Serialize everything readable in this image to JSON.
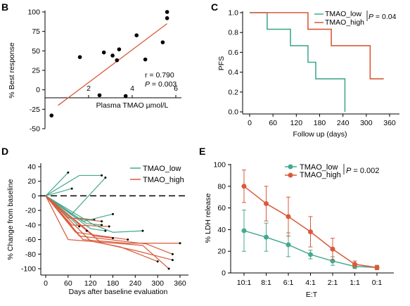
{
  "colors": {
    "teal": "#45a98f",
    "red": "#d9593a",
    "black": "#000000"
  },
  "chart_data": [
    {
      "panel": "B",
      "type": "scatter",
      "xlabel": "Plasma TMAO µmol/L",
      "ylabel": "% Best response",
      "x_ticks": [
        2,
        4,
        6
      ],
      "y_ticks": [
        100,
        75,
        50,
        25,
        0,
        -25,
        -50
      ],
      "xlim": [
        0,
        6.2
      ],
      "ylim": [
        -50,
        105
      ],
      "annotation_r": "r = 0.790",
      "annotation_p_label": "P",
      "annotation_p_value": " = 0.003",
      "points": [
        {
          "x": 0.3,
          "y": -33
        },
        {
          "x": 1.6,
          "y": 42
        },
        {
          "x": 2.7,
          "y": 48
        },
        {
          "x": 3.4,
          "y": 52
        },
        {
          "x": 3.1,
          "y": 44
        },
        {
          "x": 3.3,
          "y": 38
        },
        {
          "x": 2.5,
          "y": -7
        },
        {
          "x": 4.2,
          "y": 70
        },
        {
          "x": 4.6,
          "y": 39
        },
        {
          "x": 5.4,
          "y": 61
        },
        {
          "x": 5.6,
          "y": 92
        },
        {
          "x": 5.6,
          "y": 100
        },
        {
          "x": 3.7,
          "y": -8
        }
      ],
      "fit": [
        {
          "x": 0.6,
          "y": -20
        },
        {
          "x": 5.6,
          "y": 85
        }
      ]
    },
    {
      "panel": "C",
      "type": "line",
      "xlabel": "Follow up (days)",
      "ylabel": "PFS",
      "x_ticks": [
        0,
        60,
        120,
        180,
        240,
        300,
        360
      ],
      "y_ticks": [
        0.0,
        0.2,
        0.4,
        0.6,
        0.8,
        1.0
      ],
      "xlim": [
        -10,
        370
      ],
      "ylim": [
        0,
        1.02
      ],
      "p_text": "P = 0.04",
      "series": [
        {
          "name": "TMAO_low",
          "color": "teal",
          "steps": [
            [
              0,
              1.0
            ],
            [
              45,
              1.0
            ],
            [
              45,
              0.833
            ],
            [
              105,
              0.833
            ],
            [
              105,
              0.667
            ],
            [
              150,
              0.667
            ],
            [
              150,
              0.5
            ],
            [
              170,
              0.5
            ],
            [
              170,
              0.333
            ],
            [
              245,
              0.333
            ],
            [
              245,
              0.0
            ]
          ]
        },
        {
          "name": "TMAO_high",
          "color": "red",
          "steps": [
            [
              0,
              1.0
            ],
            [
              150,
              1.0
            ],
            [
              150,
              0.833
            ],
            [
              210,
              0.833
            ],
            [
              210,
              0.667
            ],
            [
              310,
              0.667
            ],
            [
              310,
              0.333
            ],
            [
              345,
              0.333
            ]
          ]
        }
      ]
    },
    {
      "panel": "D",
      "type": "line",
      "xlabel": "Days after baseline evaluation",
      "ylabel": "% Change from baseline",
      "x_ticks": [
        0,
        60,
        120,
        180,
        240,
        300,
        360
      ],
      "y_ticks": [
        40,
        20,
        0,
        -20,
        -40,
        -60,
        -80,
        -100
      ],
      "xlim": [
        -20,
        375
      ],
      "ylim": [
        -108,
        45
      ],
      "series": [
        {
          "name": "TMAO_low",
          "color": "teal",
          "lines": [
            [
              [
                0,
                0
              ],
              [
                60,
                32
              ]
            ],
            [
              [
                0,
                0
              ],
              [
                90,
                28
              ],
              [
                150,
                28
              ]
            ],
            [
              [
                0,
                0
              ],
              [
                70,
                10
              ]
            ],
            [
              [
                0,
                0
              ],
              [
                70,
                -25
              ],
              [
                160,
                25
              ]
            ],
            [
              [
                0,
                0
              ],
              [
                80,
                -30
              ],
              [
                130,
                -33
              ]
            ],
            [
              [
                0,
                0
              ],
              [
                100,
                -35
              ],
              [
                180,
                -25
              ]
            ],
            [
              [
                0,
                0
              ],
              [
                110,
                -38
              ],
              [
                150,
                -40
              ]
            ],
            [
              [
                0,
                0
              ],
              [
                130,
                -40
              ],
              [
                180,
                -50
              ],
              [
                260,
                -48
              ]
            ],
            [
              [
                0,
                0
              ],
              [
                120,
                -45
              ],
              [
                160,
                -48
              ]
            ],
            [
              [
                0,
                0
              ],
              [
                90,
                -42
              ]
            ]
          ]
        },
        {
          "name": "TMAO_high",
          "color": "red",
          "lines": [
            [
              [
                0,
                0
              ],
              [
                60,
                -30
              ],
              [
                150,
                -35
              ]
            ],
            [
              [
                0,
                0
              ],
              [
                70,
                -40
              ],
              [
                170,
                -42
              ]
            ],
            [
              [
                0,
                0
              ],
              [
                80,
                -50
              ],
              [
                220,
                -60
              ]
            ],
            [
              [
                0,
                0
              ],
              [
                90,
                -55
              ],
              [
                270,
                -66
              ],
              [
                340,
                -80
              ]
            ],
            [
              [
                0,
                0
              ],
              [
                100,
                -60
              ],
              [
                220,
                -65
              ],
              [
                360,
                -65
              ]
            ],
            [
              [
                0,
                0
              ],
              [
                60,
                -60
              ],
              [
                260,
                -68
              ],
              [
                330,
                -100
              ]
            ],
            [
              [
                0,
                0
              ],
              [
                120,
                -62
              ],
              [
                200,
                -70
              ],
              [
                300,
                -90
              ]
            ],
            [
              [
                0,
                0
              ],
              [
                150,
                -65
              ],
              [
                240,
                -75
              ],
              [
                340,
                -88
              ]
            ],
            [
              [
                0,
                0
              ],
              [
                130,
                -55
              ],
              [
                180,
                -58
              ]
            ],
            [
              [
                0,
                0
              ],
              [
                110,
                -48
              ]
            ]
          ]
        }
      ]
    },
    {
      "panel": "E",
      "type": "line",
      "xlabel": "E:T",
      "ylabel": "% LDH release",
      "categories": [
        "10:1",
        "8:1",
        "6:1",
        "4:1",
        "2:1",
        "1:1",
        "0:1"
      ],
      "y_ticks": [
        0,
        20,
        40,
        60,
        80,
        100
      ],
      "ylim": [
        0,
        100
      ],
      "p_text": "P = 0.002",
      "series": [
        {
          "name": "TMAO_low",
          "color": "teal",
          "values": [
            39,
            33,
            26,
            17,
            11,
            6,
            5
          ],
          "err": [
            19,
            13,
            11,
            4,
            4,
            2,
            2
          ]
        },
        {
          "name": "TMAO_high",
          "color": "red",
          "values": [
            80,
            64,
            52,
            38,
            22,
            8,
            5
          ],
          "err": [
            15,
            16,
            18,
            14,
            10,
            3,
            2
          ]
        }
      ]
    }
  ],
  "labels": {
    "panel_b": "B",
    "panel_c": "C",
    "panel_d": "D",
    "panel_e": "E",
    "legend_c_low": "TMAO_low",
    "legend_c_high": "TMAO_high",
    "legend_c_p": "P",
    "legend_c_pval": " = 0.04",
    "legend_d_low": "TMAO_low",
    "legend_d_high": "TMAO_high",
    "legend_e_low": "TMAO_low",
    "legend_e_high": "TMAO_high",
    "legend_e_p": "P",
    "legend_e_pval": " = 0.002"
  }
}
